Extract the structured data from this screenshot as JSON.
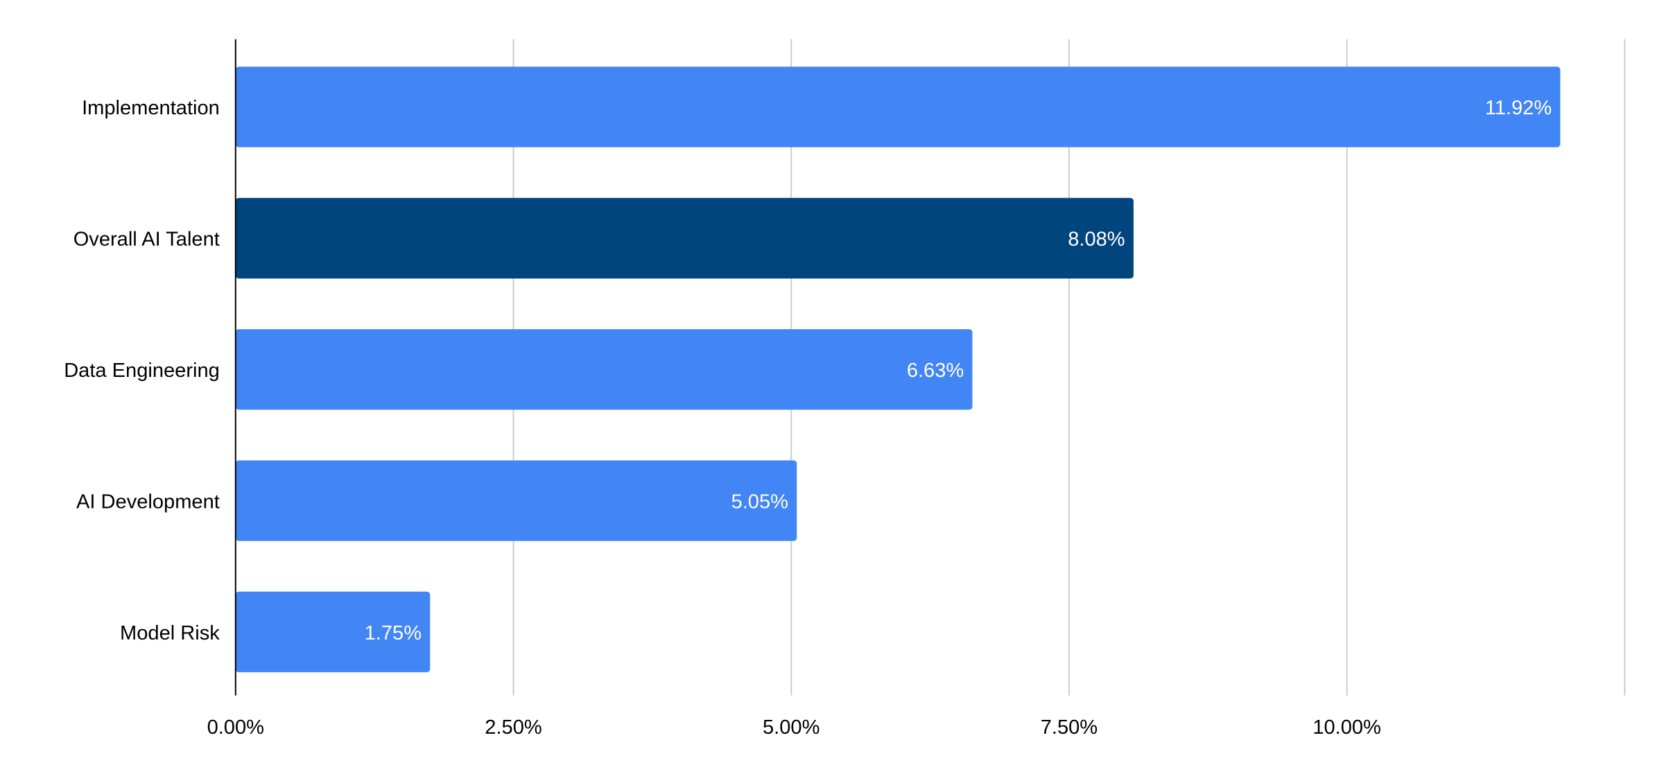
{
  "chart_data": {
    "type": "bar",
    "orientation": "horizontal",
    "categories": [
      "Implementation",
      "Overall AI Talent",
      "Data Engineering",
      "AI Development",
      "Model Risk"
    ],
    "values": [
      11.92,
      8.08,
      6.63,
      5.05,
      1.75
    ],
    "data_labels": [
      "11.92%",
      "8.08%",
      "6.63%",
      "5.05%",
      "1.75%"
    ],
    "colors": [
      "#4285f4",
      "#01457f",
      "#4285f4",
      "#4285f4",
      "#4285f4"
    ],
    "title": "",
    "xlabel": "",
    "ylabel": "",
    "xlim": [
      0,
      12.5
    ],
    "xticks": [
      0,
      2.5,
      5,
      7.5,
      10,
      12.5
    ],
    "xtick_labels": [
      "0.00%",
      "2.50%",
      "5.00%",
      "7.50%",
      "10.00%",
      ""
    ],
    "grid": true,
    "legend": "none"
  }
}
